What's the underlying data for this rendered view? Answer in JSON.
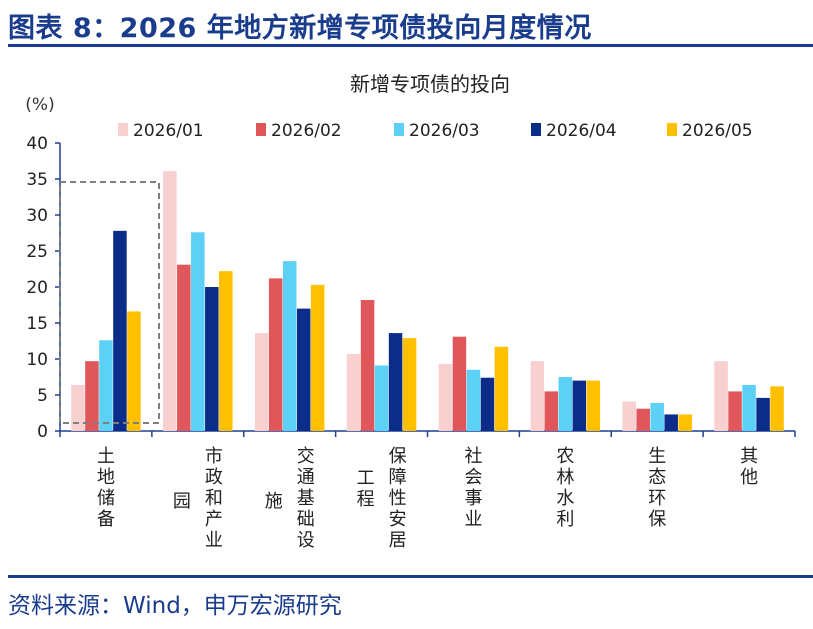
{
  "figure": {
    "title": "图表 8：2026 年地方新增专项债投向月度情况",
    "source": "资料来源：Wind，申万宏源研究"
  },
  "colors": {
    "brand": "#1a3c8c",
    "axis": "#1f3f8f",
    "highlight_box": "#7f7f7f"
  },
  "chart_data": {
    "type": "bar",
    "title": "新增专项债的投向",
    "ylabel": "(%)",
    "xlabel": "",
    "ylim": [
      0,
      40
    ],
    "yticks": [
      0,
      5,
      10,
      15,
      20,
      25,
      30,
      35,
      40
    ],
    "grid": false,
    "legend_position": "top",
    "categories": [
      "土地储备",
      "园 市政和产业",
      "施 交通基础设",
      "工程 保障性安居",
      "社会事业",
      "农林水利",
      "生态环保",
      "其他"
    ],
    "category_label_columns": [
      [
        [
          "土",
          "地",
          "储",
          "备"
        ]
      ],
      [
        [
          "园"
        ],
        [
          "市",
          "政",
          "和",
          "产",
          "业"
        ]
      ],
      [
        [
          "施"
        ],
        [
          "交",
          "通",
          "基",
          "础",
          "设"
        ]
      ],
      [
        [
          "工",
          "程"
        ],
        [
          "保",
          "障",
          "性",
          "安",
          "居"
        ]
      ],
      [
        [
          "社",
          "会",
          "事",
          "业"
        ]
      ],
      [
        [
          "农",
          "林",
          "水",
          "利"
        ]
      ],
      [
        [
          "生",
          "态",
          "环",
          "保"
        ]
      ],
      [
        [
          "其",
          "他"
        ]
      ]
    ],
    "series": [
      {
        "name": "2026/01",
        "color": "#f8d0d0",
        "values": [
          6.4,
          36.1,
          13.6,
          10.7,
          9.3,
          9.7,
          4.1,
          9.7
        ]
      },
      {
        "name": "2026/02",
        "color": "#e0575b",
        "values": [
          9.7,
          23.1,
          21.2,
          18.2,
          13.1,
          5.5,
          3.1,
          5.5
        ]
      },
      {
        "name": "2026/03",
        "color": "#5dd0f5",
        "values": [
          12.6,
          27.6,
          23.6,
          9.1,
          8.5,
          7.5,
          3.9,
          6.4
        ]
      },
      {
        "name": "2026/04",
        "color": "#0c2c8a",
        "values": [
          27.8,
          20.0,
          17.0,
          13.6,
          7.4,
          7.0,
          2.3,
          4.6
        ]
      },
      {
        "name": "2026/05",
        "color": "#ffc000",
        "values": [
          16.6,
          22.2,
          20.3,
          12.9,
          11.7,
          7.0,
          2.3,
          6.2
        ]
      }
    ]
  }
}
